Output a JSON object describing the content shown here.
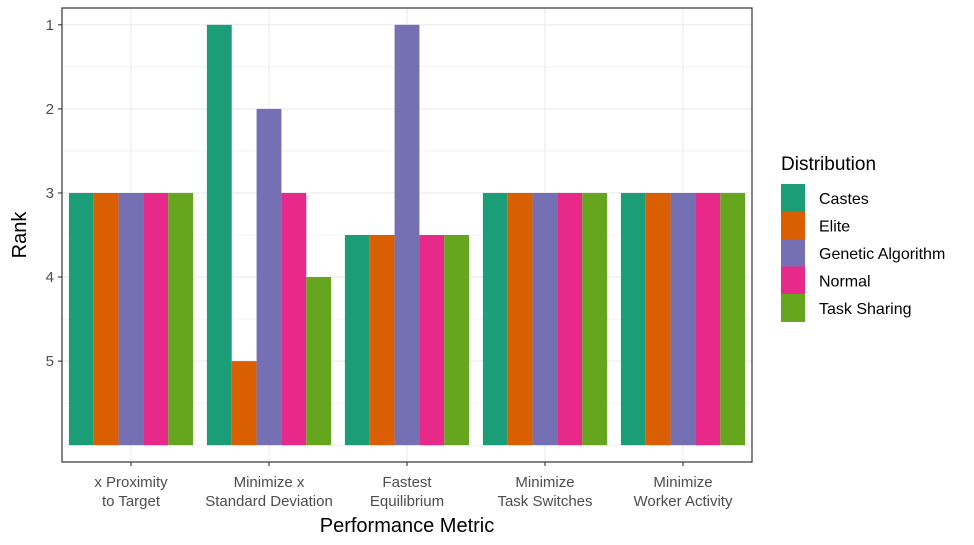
{
  "chart_data": {
    "type": "bar",
    "xlabel": "Performance Metric",
    "ylabel": "Rank",
    "categories": [
      [
        "x Proximity",
        "to Target"
      ],
      [
        "Minimize x",
        "Standard Deviation"
      ],
      [
        "Fastest",
        "Equilibrium"
      ],
      [
        "Minimize",
        "Task Switches"
      ],
      [
        "Minimize",
        "Worker Activity"
      ]
    ],
    "y_axis": {
      "reversed": true,
      "baseline": 6,
      "ylim": [
        6.2,
        0.8
      ],
      "ticks": [
        1,
        2,
        3,
        4,
        5
      ]
    },
    "grid": true,
    "legend": {
      "title": "Distribution",
      "position": "right"
    },
    "series": [
      {
        "name": "Castes",
        "color": "#1B9E77",
        "values": [
          3,
          1,
          3.5,
          3,
          3
        ]
      },
      {
        "name": "Elite",
        "color": "#D95F02",
        "values": [
          3,
          5,
          3.5,
          3,
          3
        ]
      },
      {
        "name": "Genetic Algorithm",
        "color": "#7570B3",
        "values": [
          3,
          2,
          1,
          3,
          3
        ]
      },
      {
        "name": "Normal",
        "color": "#E7298A",
        "values": [
          3,
          3,
          3.5,
          3,
          3
        ]
      },
      {
        "name": "Task Sharing",
        "color": "#66A61E",
        "values": [
          3,
          4,
          3.5,
          3,
          3
        ]
      }
    ]
  }
}
